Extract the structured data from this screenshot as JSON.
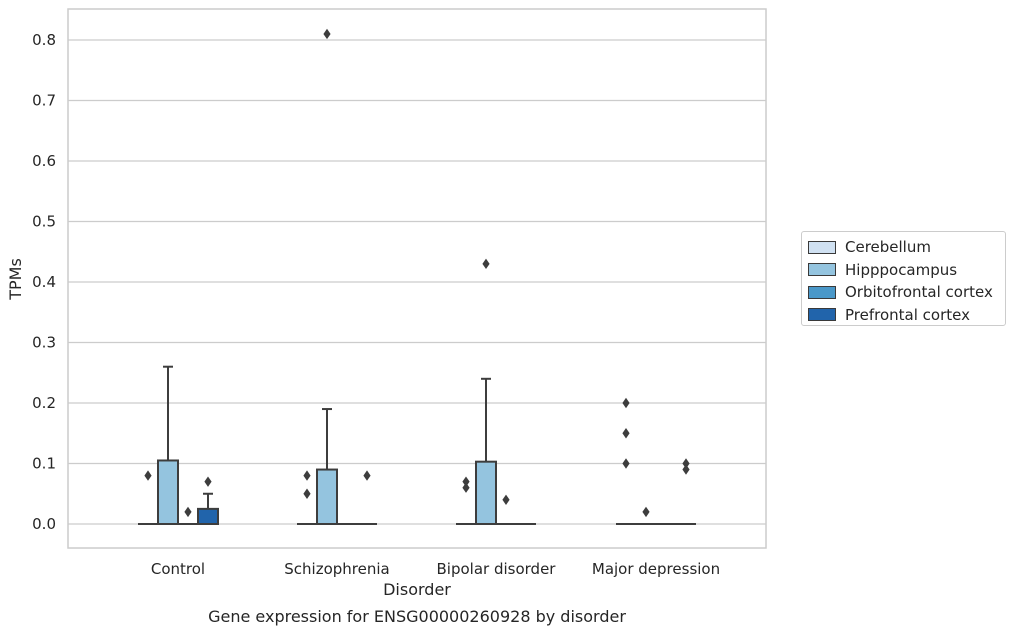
{
  "chart_data": {
    "type": "box",
    "title": "Gene expression for ENSG00000260928 by disorder",
    "xlabel": "Disorder",
    "ylabel": "TPMs",
    "ylim": [
      -0.04,
      0.85
    ],
    "yticks": [
      0.0,
      0.1,
      0.2,
      0.3,
      0.4,
      0.5,
      0.6,
      0.7,
      0.8
    ],
    "ytick_labels": [
      "0.0",
      "0.1",
      "0.2",
      "0.3",
      "0.4",
      "0.5",
      "0.6",
      "0.7",
      "0.8"
    ],
    "grid": "horizontal",
    "legend_position": "right",
    "categories": [
      "Control",
      "Schizophrenia",
      "Bipolar disorder",
      "Major depression"
    ],
    "series": [
      {
        "name": "Cerebellum",
        "color": "#d0e1f2",
        "boxes": [
          {
            "q1": 0,
            "median": 0,
            "q3": 0,
            "whislo": 0,
            "whishi": 0,
            "fliers": []
          },
          {
            "q1": 0,
            "median": 0,
            "q3": 0,
            "whislo": 0,
            "whishi": 0,
            "fliers": []
          },
          {
            "q1": 0,
            "median": 0,
            "q3": 0,
            "whislo": 0,
            "whishi": 0,
            "fliers": []
          },
          {
            "q1": 0,
            "median": 0,
            "q3": 0,
            "whislo": 0,
            "whishi": 0,
            "fliers": [
              0.2,
              0.1
            ]
          }
        ]
      },
      {
        "name": "Hipppocampus",
        "color": "#94c4df",
        "boxes": [
          {
            "q1": 0,
            "median": 0,
            "q3": 0.105,
            "whislo": 0,
            "whishi": 0.26,
            "fliers": []
          },
          {
            "q1": 0,
            "median": 0,
            "q3": 0.09,
            "whislo": 0,
            "whishi": 0.19,
            "fliers": [
              0.81
            ]
          },
          {
            "q1": 0,
            "median": 0,
            "q3": 0.103,
            "whislo": 0,
            "whishi": 0.24,
            "fliers": [
              0.43
            ]
          },
          {
            "q1": 0,
            "median": 0,
            "q3": 0,
            "whislo": 0,
            "whishi": 0,
            "fliers": [
              0.02
            ]
          }
        ]
      },
      {
        "name": "Orbitofrontal cortex",
        "color": "#4a98c9",
        "boxes": [
          {
            "q1": 0,
            "median": 0,
            "q3": 0,
            "whislo": 0,
            "whishi": 0,
            "fliers": [
              0.02
            ]
          },
          {
            "q1": 0,
            "median": 0,
            "q3": 0,
            "whislo": 0,
            "whishi": 0,
            "fliers": []
          },
          {
            "q1": 0,
            "median": 0,
            "q3": 0,
            "whislo": 0,
            "whishi": 0,
            "fliers": [
              0.04
            ]
          },
          {
            "q1": 0,
            "median": 0,
            "q3": 0,
            "whislo": 0,
            "whishi": 0,
            "fliers": []
          }
        ]
      },
      {
        "name": "Prefrontal cortex",
        "color": "#2164ab",
        "boxes": [
          {
            "q1": 0,
            "median": 0,
            "q3": 0.025,
            "whislo": 0,
            "whishi": 0.05,
            "fliers": [
              0.07
            ]
          },
          {
            "q1": 0,
            "median": 0,
            "q3": 0,
            "whislo": 0,
            "whishi": 0,
            "fliers": [
              0.08
            ]
          },
          {
            "q1": 0,
            "median": 0,
            "q3": 0,
            "whislo": 0,
            "whishi": 0,
            "fliers": []
          },
          {
            "q1": 0,
            "median": 0,
            "q3": 0,
            "whislo": 0,
            "whishi": 0,
            "fliers": [
              0.1,
              0.09
            ]
          }
        ]
      }
    ],
    "extra_fliers_left": [
      {
        "category": 0,
        "values": [
          0.08
        ]
      },
      {
        "category": 1,
        "values": [
          0.08,
          0.05
        ]
      },
      {
        "category": 2,
        "values": [
          0.07,
          0.06
        ]
      },
      {
        "category": 3,
        "values": [
          0.15
        ]
      }
    ]
  },
  "legend": {
    "items": [
      {
        "label": "Cerebellum",
        "color": "#d0e1f2"
      },
      {
        "label": "Hipppocampus",
        "color": "#94c4df"
      },
      {
        "label": "Orbitofrontal cortex",
        "color": "#4a98c9"
      },
      {
        "label": "Prefrontal cortex",
        "color": "#2164ab"
      }
    ]
  }
}
